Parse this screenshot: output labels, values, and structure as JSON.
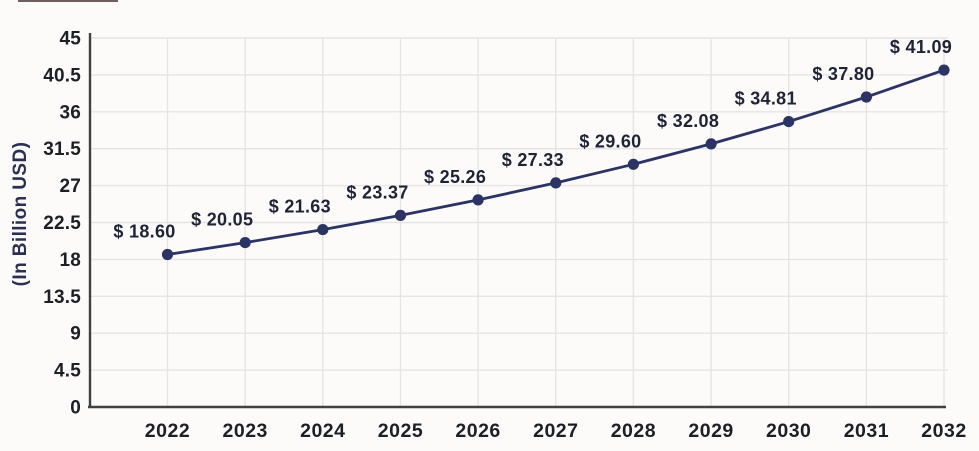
{
  "page": {
    "background_color": "#fcfbf9"
  },
  "chart_data": {
    "type": "line",
    "title": "",
    "ylabel": "(In Billion USD)",
    "xlabel": "",
    "categories": [
      "2022",
      "2023",
      "2024",
      "2025",
      "2026",
      "2027",
      "2028",
      "2029",
      "2030",
      "2031",
      "2032"
    ],
    "values": [
      18.6,
      20.05,
      21.63,
      23.37,
      25.26,
      27.33,
      29.6,
      32.08,
      34.81,
      37.8,
      41.09
    ],
    "point_labels": [
      "$ 18.60",
      "$ 20.05",
      "$ 21.63",
      "$ 23.37",
      "$ 25.26",
      "$ 27.33",
      "$ 29.60",
      "$ 32.08",
      "$ 34.81",
      "$ 37.80",
      "$ 41.09"
    ],
    "ytick_labels": [
      "0",
      "4.5",
      "9",
      "13.5",
      "18",
      "22.5",
      "27",
      "31.5",
      "36",
      "40.5",
      "45"
    ],
    "ytick_values": [
      0,
      4.5,
      9,
      13.5,
      18,
      22.5,
      27,
      31.5,
      36,
      40.5,
      45
    ],
    "ylim": [
      0,
      45
    ],
    "grid": true,
    "legend": "none",
    "colors": {
      "line": "#2b3464",
      "marker": "#2b3464",
      "grid": "#e5e5e5",
      "axis": "#3e4043",
      "tick_text": "#1d1f26",
      "point_label_text": "#1e2337",
      "axis_title_text": "#2a3052"
    }
  }
}
